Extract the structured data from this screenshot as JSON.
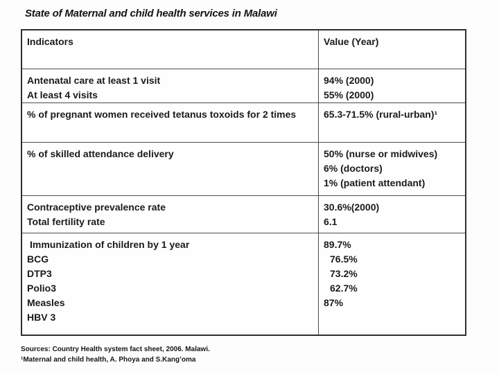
{
  "title": "State of Maternal and child health services in Malawi",
  "table": {
    "header": {
      "indicators": "Indicators",
      "value": "Value (Year)"
    },
    "rows": [
      {
        "indicator": [
          "Antenatal care at least 1 visit",
          "At least 4 visits"
        ],
        "value": [
          "94% (2000)",
          "55% (2000)"
        ]
      },
      {
        "indicator": [
          "% of pregnant women received tetanus toxoids for 2 times"
        ],
        "value": [
          "65.3-71.5% (rural-urban)¹"
        ]
      },
      {
        "indicator": [
          "% of skilled attendance delivery"
        ],
        "value": [
          "50% (nurse or midwives)",
          "6% (doctors)",
          "1% (patient attendant)"
        ]
      },
      {
        "indicator": [
          "Contraceptive prevalence rate",
          "Total fertility rate"
        ],
        "value": [
          "30.6%(2000)",
          "6.1"
        ]
      },
      {
        "indicator": [
          "Immunization of children by 1 year",
          "BCG",
          "DTP3",
          "Polio3",
          "Measles",
          "HBV 3"
        ],
        "value": [
          "89.7%",
          "76.5%",
          "73.2%",
          "62.7%",
          "87%"
        ]
      }
    ]
  },
  "footer": {
    "line1": "Sources: Country Health system fact sheet, 2006. Malawi.",
    "line2": "¹Maternal and child health, A. Phoya and S.Kang’oma"
  },
  "colors": {
    "background": "#fdfdfd",
    "text": "#1a1a1a",
    "border": "#2e2e2e"
  }
}
